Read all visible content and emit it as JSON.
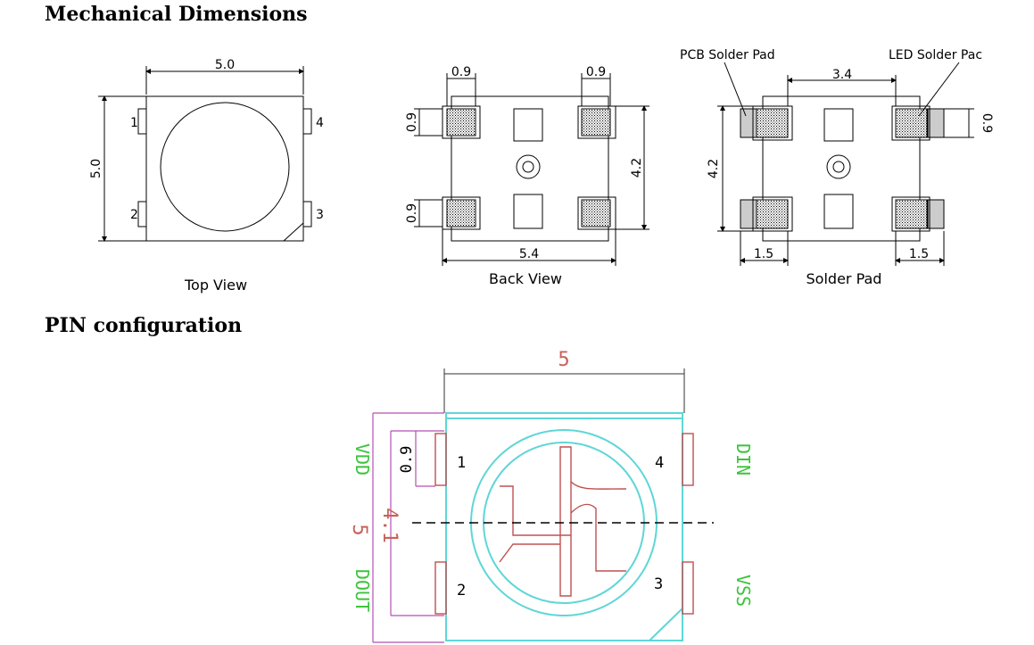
{
  "headings": {
    "mechanical": "Mechanical Dimensions",
    "pin": "PIN  configuration"
  },
  "top_view": {
    "caption": "Top View",
    "width_dim": "5.0",
    "height_dim": "5.0",
    "pins": [
      "1",
      "2",
      "3",
      "4"
    ]
  },
  "back_view": {
    "caption": "Back View",
    "pad_width_left": "0.9",
    "pad_width_right": "0.9",
    "pad_height_top": "0.9",
    "pad_height_bottom": "0.9",
    "height_dim": "4.2",
    "width_dim": "5.4"
  },
  "solder_pad": {
    "caption": "Solder Pad",
    "pcb_label": "PCB Solder Pad",
    "led_label": "LED Solder Pac",
    "spacing_dim": "3.4",
    "height_dim": "4.2",
    "pad_dim": "0.9",
    "left_dim": "1.5",
    "right_dim": "1.5"
  },
  "pin_config": {
    "width_dim": "5",
    "height_dim": "5",
    "pitch_dim": "4.1",
    "pad_dim": "0.9",
    "pins": [
      "1",
      "2",
      "3",
      "4"
    ],
    "signals": {
      "pin1": "VDD",
      "pin2": "DOUT",
      "pin3": "VSS",
      "pin4": "DIN"
    },
    "colors": {
      "body": "#5fd6d6",
      "dimension": "#b44fb4",
      "pad": "#c05050",
      "signal": "#3cc43c"
    }
  }
}
